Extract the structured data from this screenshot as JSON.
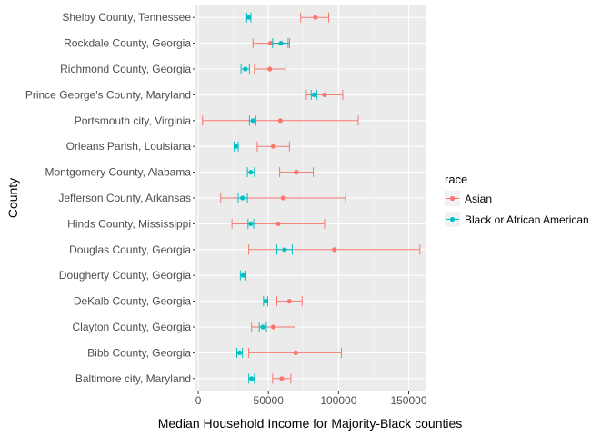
{
  "chart_data": {
    "type": "scatter",
    "subtype": "point-with-errorbars",
    "xlabel": "Median Household Income for Majority-Black counties",
    "ylabel": "County",
    "xlim": [
      -2000,
      162000
    ],
    "xticks": [
      0,
      50000,
      100000,
      150000
    ],
    "xtick_labels": [
      "0",
      "50000",
      "100000",
      "150000"
    ],
    "categories": [
      "Baltimore city, Maryland",
      "Bibb County, Georgia",
      "Clayton County, Georgia",
      "DeKalb County, Georgia",
      "Dougherty County, Georgia",
      "Douglas County, Georgia",
      "Hinds County, Mississippi",
      "Jefferson County, Arkansas",
      "Montgomery County, Alabama",
      "Orleans Parish, Louisiana",
      "Portsmouth city, Virginia",
      "Prince George's County, Maryland",
      "Richmond County, Georgia",
      "Rockdale County, Georgia",
      "Shelby County, Tennessee"
    ],
    "grid": true,
    "legend": {
      "title": "race",
      "position": "right"
    },
    "series": [
      {
        "name": "Asian",
        "color": "#F8766D",
        "values": [
          59500,
          69500,
          53500,
          65000,
          null,
          97000,
          57000,
          60500,
          70000,
          53500,
          58500,
          90000,
          51000,
          51500,
          83500
        ],
        "lower": [
          53000,
          36000,
          38000,
          56000,
          null,
          36000,
          24000,
          16000,
          58000,
          42000,
          3000,
          77000,
          40000,
          39000,
          73000
        ],
        "upper": [
          66000,
          102000,
          69000,
          74000,
          null,
          158000,
          90000,
          105000,
          82000,
          65000,
          114000,
          103000,
          62000,
          64000,
          93000
        ]
      },
      {
        "name": "Black or African American",
        "color": "#00BFC4",
        "values": [
          38000,
          29500,
          46000,
          48000,
          32000,
          61500,
          37500,
          31500,
          37500,
          27000,
          39000,
          82500,
          33500,
          59000,
          36000
        ],
        "lower": [
          36000,
          27500,
          43500,
          46500,
          30000,
          56000,
          35500,
          28500,
          35000,
          25500,
          36500,
          80500,
          30500,
          53000,
          34500
        ],
        "upper": [
          40000,
          31500,
          48500,
          49500,
          34000,
          67000,
          39500,
          35000,
          40000,
          28500,
          41000,
          84500,
          36500,
          65000,
          37500
        ]
      }
    ]
  }
}
